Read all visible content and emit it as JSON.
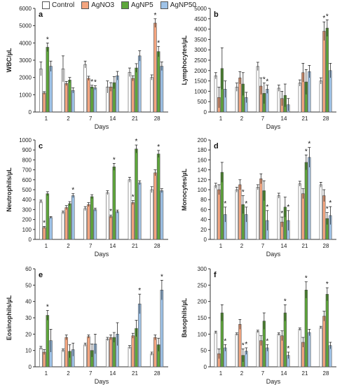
{
  "legend": [
    {
      "name": "Control",
      "color": "#ffffff"
    },
    {
      "name": "AgNO3",
      "color": "#f4a57f"
    },
    {
      "name": "AgNP5",
      "color": "#5ea63b"
    },
    {
      "name": "AgNP50",
      "color": "#9fc3e8"
    }
  ],
  "chart_data": [
    {
      "type": "bar",
      "panel": "a",
      "xlabel": "Days",
      "ylabel": "WBC/µL",
      "categories": [
        "1",
        "2",
        "7",
        "14",
        "21",
        "28"
      ],
      "ylim": [
        0,
        6000
      ],
      "yticks": [
        0,
        1000,
        2000,
        3000,
        4000,
        5000,
        6000
      ],
      "series": [
        {
          "name": "Control",
          "values": [
            2500,
            2500,
            2750,
            1450,
            2300,
            2000
          ],
          "errors": [
            400,
            750,
            200,
            350,
            250,
            150
          ]
        },
        {
          "name": "AgNO3",
          "values": [
            1100,
            1650,
            1950,
            1450,
            1950,
            5150
          ],
          "errors": [
            80,
            120,
            120,
            250,
            150,
            250
          ]
        },
        {
          "name": "AgNP5",
          "values": [
            3750,
            1850,
            1450,
            1700,
            2550,
            3500
          ],
          "errors": [
            250,
            150,
            100,
            350,
            250,
            300
          ]
        },
        {
          "name": "AgNP50",
          "values": [
            2650,
            1250,
            1400,
            2100,
            3250,
            2650
          ],
          "errors": [
            300,
            150,
            120,
            250,
            300,
            250
          ]
        }
      ],
      "significance": [
        [
          0,
          2
        ],
        [
          2,
          2
        ],
        [
          2,
          3
        ],
        [
          5,
          1
        ],
        [
          5,
          2
        ]
      ]
    },
    {
      "type": "bar",
      "panel": "b",
      "xlabel": "Days",
      "ylabel": "Lymphocytes/µL",
      "categories": [
        "1",
        "2",
        "7",
        "14",
        "21",
        "28"
      ],
      "ylim": [
        0,
        5000
      ],
      "yticks": [
        0,
        500,
        1000,
        1500,
        2000,
        2500,
        3000,
        3500,
        4000,
        4500,
        5000
      ],
      "series": [
        {
          "name": "Control",
          "values": [
            1750,
            1200,
            2200,
            1150,
            1400,
            1500
          ],
          "errors": [
            150,
            200,
            200,
            150,
            150,
            150
          ]
        },
        {
          "name": "AgNO3",
          "values": [
            700,
            1650,
            1250,
            650,
            1900,
            3900
          ],
          "errors": [
            500,
            300,
            400,
            350,
            450,
            450
          ]
        },
        {
          "name": "AgNP5",
          "values": [
            2100,
            1350,
            900,
            800,
            1450,
            4050
          ],
          "errors": [
            1000,
            550,
            500,
            550,
            600,
            400
          ]
        },
        {
          "name": "AgNP50",
          "values": [
            1100,
            700,
            1100,
            350,
            1950,
            2000
          ],
          "errors": [
            400,
            250,
            200,
            300,
            300,
            350
          ]
        }
      ],
      "significance": [
        [
          2,
          2
        ],
        [
          2,
          3
        ],
        [
          5,
          1
        ],
        [
          5,
          2
        ]
      ]
    },
    {
      "type": "bar",
      "panel": "c",
      "xlabel": "Days",
      "ylabel": "Neutrophils/µL",
      "categories": [
        "1",
        "2",
        "7",
        "14",
        "21",
        "28"
      ],
      "ylim": [
        0,
        1000
      ],
      "yticks": [
        0,
        100,
        200,
        300,
        400,
        500,
        600,
        700,
        800,
        900,
        1000
      ],
      "series": [
        {
          "name": "Control",
          "values": [
            380,
            270,
            310,
            470,
            600,
            500
          ],
          "errors": [
            15,
            15,
            20,
            20,
            25,
            30
          ]
        },
        {
          "name": "AgNO3",
          "values": [
            120,
            320,
            350,
            230,
            370,
            670
          ],
          "errors": [
            10,
            20,
            20,
            15,
            20,
            30
          ]
        },
        {
          "name": "AgNP5",
          "values": [
            460,
            360,
            430,
            730,
            910,
            860
          ],
          "errors": [
            20,
            20,
            20,
            35,
            40,
            35
          ]
        },
        {
          "name": "AgNP50",
          "values": [
            220,
            440,
            300,
            280,
            570,
            490
          ],
          "errors": [
            10,
            20,
            15,
            15,
            20,
            20
          ]
        }
      ],
      "significance": [
        [
          0,
          1
        ],
        [
          1,
          3
        ],
        [
          3,
          1
        ],
        [
          3,
          2
        ],
        [
          4,
          1
        ],
        [
          4,
          2
        ],
        [
          5,
          2
        ]
      ]
    },
    {
      "type": "bar",
      "panel": "d",
      "xlabel": "Days",
      "ylabel": "Monocytes/µL",
      "categories": [
        "1",
        "2",
        "7",
        "14",
        "21",
        "28"
      ],
      "ylim": [
        0,
        200
      ],
      "yticks": [
        0,
        20,
        40,
        60,
        80,
        100,
        120,
        140,
        160,
        180,
        200
      ],
      "series": [
        {
          "name": "Control",
          "values": [
            108,
            100,
            105,
            88,
            112,
            110
          ],
          "errors": [
            5,
            5,
            5,
            5,
            5,
            5
          ]
        },
        {
          "name": "AgNO3",
          "values": [
            100,
            110,
            122,
            35,
            92,
            88
          ],
          "errors": [
            10,
            10,
            10,
            10,
            10,
            12
          ]
        },
        {
          "name": "AgNP5",
          "values": [
            135,
            70,
            98,
            65,
            155,
            42
          ],
          "errors": [
            20,
            18,
            20,
            20,
            15,
            12
          ]
        },
        {
          "name": "AgNP50",
          "values": [
            50,
            50,
            38,
            38,
            165,
            48
          ],
          "errors": [
            15,
            15,
            20,
            20,
            20,
            18
          ]
        }
      ],
      "significance": [
        [
          0,
          3
        ],
        [
          1,
          2
        ],
        [
          1,
          3
        ],
        [
          2,
          3
        ],
        [
          3,
          1
        ],
        [
          3,
          3
        ],
        [
          4,
          2
        ],
        [
          4,
          3
        ],
        [
          5,
          2
        ],
        [
          5,
          3
        ]
      ]
    },
    {
      "type": "bar",
      "panel": "e",
      "xlabel": "Days",
      "ylabel": "Eosinophils/µL",
      "categories": [
        "1",
        "2",
        "7",
        "14",
        "21",
        "28"
      ],
      "ylim": [
        0,
        60
      ],
      "yticks": [
        0,
        10,
        20,
        30,
        40,
        50,
        60
      ],
      "series": [
        {
          "name": "Control",
          "values": [
            11.5,
            10,
            13.5,
            17,
            12,
            8
          ],
          "errors": [
            1,
            1,
            1,
            1,
            1,
            1
          ]
        },
        {
          "name": "AgNO3",
          "values": [
            9,
            18,
            18.5,
            18,
            19,
            18
          ],
          "errors": [
            1.5,
            1.5,
            1,
            1.5,
            1.5,
            1.5
          ]
        },
        {
          "name": "AgNP5",
          "values": [
            31.5,
            9.5,
            10,
            18,
            23.5,
            13.5
          ],
          "errors": [
            3,
            4,
            4,
            3,
            5,
            4
          ]
        },
        {
          "name": "AgNP50",
          "values": [
            16,
            10.5,
            14,
            20,
            38.5,
            47
          ],
          "errors": [
            7,
            4,
            6,
            7,
            6,
            6
          ]
        }
      ],
      "significance": [
        [
          0,
          2
        ],
        [
          4,
          3
        ],
        [
          5,
          3
        ]
      ]
    },
    {
      "type": "bar",
      "panel": "f",
      "xlabel": "Days",
      "ylabel": "Basophils/µL",
      "categories": [
        "1",
        "2",
        "7",
        "14",
        "21",
        "28"
      ],
      "ylim": [
        0,
        300
      ],
      "yticks": [
        0,
        50,
        100,
        150,
        200,
        250,
        300
      ],
      "series": [
        {
          "name": "Control",
          "values": [
            105,
            100,
            108,
            100,
            115,
            120
          ],
          "errors": [
            4,
            4,
            4,
            4,
            4,
            4
          ]
        },
        {
          "name": "AgNO3",
          "values": [
            40,
            130,
            80,
            95,
            75,
            155
          ],
          "errors": [
            15,
            15,
            15,
            15,
            15,
            15
          ]
        },
        {
          "name": "AgNP5",
          "values": [
            165,
            35,
            140,
            165,
            235,
            222
          ],
          "errors": [
            25,
            20,
            25,
            25,
            25,
            20
          ]
        },
        {
          "name": "AgNP50",
          "values": [
            58,
            48,
            58,
            35,
            105,
            65
          ],
          "errors": [
            10,
            10,
            10,
            10,
            10,
            10
          ]
        }
      ],
      "significance": [
        [
          0,
          3
        ],
        [
          1,
          2
        ],
        [
          1,
          3
        ],
        [
          2,
          3
        ],
        [
          3,
          2
        ],
        [
          3,
          3
        ],
        [
          4,
          2
        ],
        [
          5,
          2
        ]
      ]
    }
  ]
}
